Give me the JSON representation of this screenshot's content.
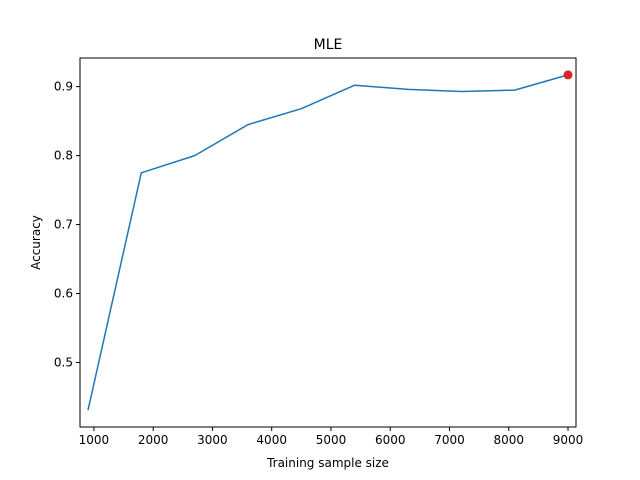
{
  "chart_data": {
    "type": "line",
    "title": "MLE",
    "xlabel": "Training sample size",
    "ylabel": "Accuracy",
    "xlim": [
      765,
      9135
    ],
    "ylim": [
      0.4065,
      0.9415
    ],
    "xticks": [
      1000,
      2000,
      3000,
      4000,
      5000,
      6000,
      7000,
      8000,
      9000
    ],
    "yticks": [
      0.5,
      0.6,
      0.7,
      0.8,
      0.9
    ],
    "grid": false,
    "series": [
      {
        "x": [
          900,
          1800,
          2700,
          3600,
          4500,
          5400,
          6300,
          7200,
          8100,
          9000
        ],
        "y": [
          0.431,
          0.775,
          0.8,
          0.845,
          0.868,
          0.902,
          0.896,
          0.893,
          0.895,
          0.917
        ],
        "color": "#1f77b4"
      }
    ],
    "highlight_point": {
      "x": 9000,
      "y": 0.917,
      "color": "#d62728"
    }
  }
}
